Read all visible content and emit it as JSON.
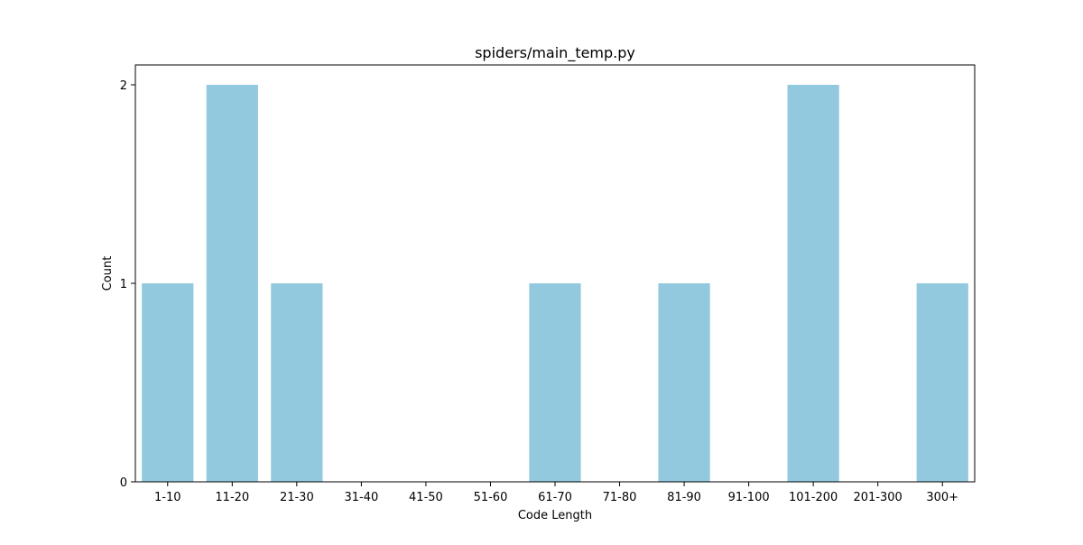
{
  "chart_data": {
    "type": "bar",
    "title": "spiders/main_temp.py",
    "xlabel": "Code Length",
    "ylabel": "Count",
    "categories": [
      "1-10",
      "11-20",
      "21-30",
      "31-40",
      "41-50",
      "51-60",
      "61-70",
      "71-80",
      "81-90",
      "91-100",
      "101-200",
      "201-300",
      "300+"
    ],
    "values": [
      1,
      2,
      1,
      0,
      0,
      0,
      1,
      0,
      1,
      0,
      2,
      0,
      1
    ],
    "ylim": [
      0,
      2.1
    ],
    "yticks": [
      0,
      1,
      2
    ],
    "bar_color": "#92c9de",
    "grid": false,
    "legend": "none"
  }
}
